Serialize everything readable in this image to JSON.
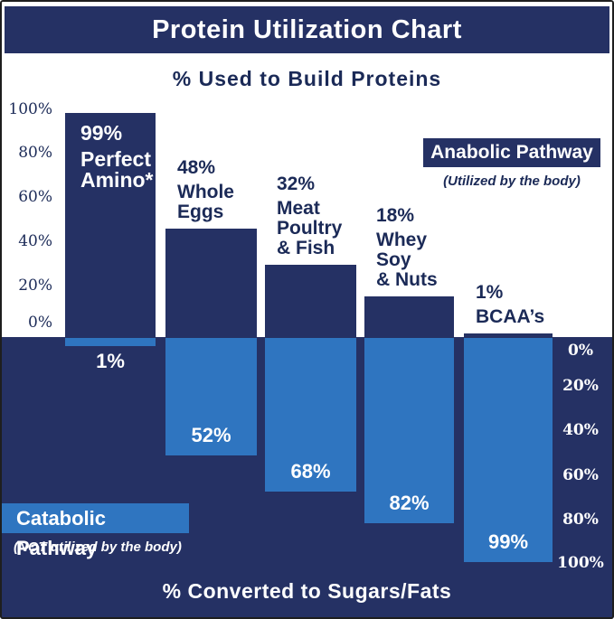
{
  "title": "Protein Utilization Chart",
  "top_axis_title": "% Used to Build Proteins",
  "bottom_axis_title": "% Converted to Sugars/Fats",
  "anabolic_box": {
    "label": "Anabolic Pathway",
    "caption": "(Utilized by the body)"
  },
  "catabolic_box": {
    "label": "Catabolic Pathway",
    "caption": "(NOT utilized by the body)"
  },
  "axes": {
    "left_ticks": [
      "100%",
      "80%",
      "60%",
      "40%",
      "20%",
      "0%"
    ],
    "right_ticks": [
      "0%",
      "20%",
      "40%",
      "60%",
      "80%",
      "100%"
    ]
  },
  "colors": {
    "navy": "#253164",
    "light_blue": "#2f75c0",
    "white": "#ffffff",
    "dark_text": "#1b2a57"
  },
  "chart_data": {
    "type": "bar",
    "title": "Protein Utilization Chart",
    "categories": [
      "Perfect Amino*",
      "Whole Eggs",
      "Meat Poultry & Fish",
      "Whey Soy & Nuts",
      "BCAA’s"
    ],
    "series": [
      {
        "name": "Anabolic Pathway — % Used to Build Proteins",
        "values": [
          99,
          48,
          32,
          18,
          1
        ]
      },
      {
        "name": "Catabolic Pathway — % Converted to Sugars/Fats",
        "values": [
          1,
          52,
          68,
          82,
          99
        ]
      }
    ],
    "ylim_top": [
      0,
      100
    ],
    "ylim_bottom": [
      0,
      100
    ],
    "grid": false,
    "legend_position": "inline-boxes",
    "bars": [
      {
        "name_lines": [
          "Perfect",
          "Amino*"
        ],
        "anabolic_label": "99%",
        "catabolic_label": "1%"
      },
      {
        "name_lines": [
          "Whole",
          "Eggs"
        ],
        "anabolic_label": "48%",
        "catabolic_label": "52%"
      },
      {
        "name_lines": [
          "Meat",
          "Poultry",
          "& Fish"
        ],
        "anabolic_label": "32%",
        "catabolic_label": "68%"
      },
      {
        "name_lines": [
          "Whey",
          "Soy",
          "& Nuts"
        ],
        "anabolic_label": "18%",
        "catabolic_label": "82%"
      },
      {
        "name_lines": [
          "BCAA’s"
        ],
        "anabolic_label": "1%",
        "catabolic_label": "99%"
      }
    ]
  }
}
